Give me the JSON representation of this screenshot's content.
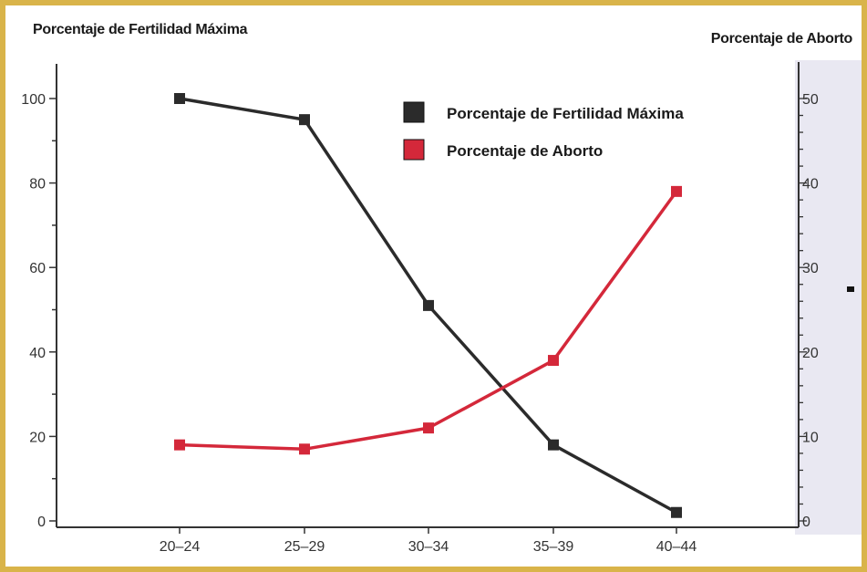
{
  "titles": {
    "left": "Porcentaje de Fertilidad Máxima",
    "right": "Porcentaje de Aborto"
  },
  "colors": {
    "border": "#d9b44a",
    "series_fertility": "#2b2b2b",
    "series_abortion": "#d4283a",
    "axis": "#333333"
  },
  "chart_data": {
    "type": "line",
    "categories": [
      "20–24",
      "25–29",
      "30–34",
      "35–39",
      "40–44"
    ],
    "y_left": {
      "label": "Porcentaje de Fertilidad Máxima",
      "ticks": [
        0,
        20,
        40,
        60,
        80,
        100
      ],
      "lim": [
        0,
        100
      ]
    },
    "y_right": {
      "label": "Porcentaje de Aborto",
      "ticks": [
        0,
        10,
        20,
        30,
        40,
        50
      ],
      "lim": [
        0,
        50
      ]
    },
    "series": [
      {
        "name": "Porcentaje de Fertilidad Máxima",
        "axis": "left",
        "values": [
          100,
          95,
          51,
          18,
          2
        ]
      },
      {
        "name": "Porcentaje de Aborto",
        "axis": "right",
        "values": [
          9,
          8.5,
          11,
          19,
          39
        ]
      }
    ],
    "legend": "top-right"
  }
}
